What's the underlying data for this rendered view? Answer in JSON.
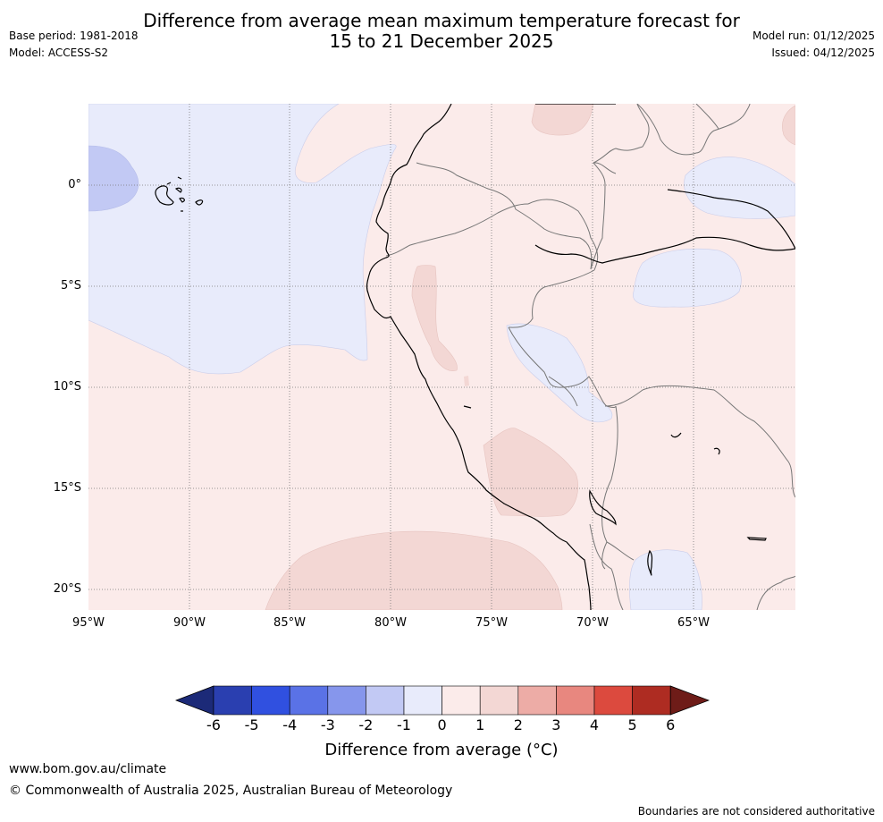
{
  "header": {
    "title_line1": "Difference from average mean maximum temperature forecast for",
    "title_line2": "15 to 21 December 2025",
    "base_period": "Base period: 1981-2018",
    "model": "Model: ACCESS-S2",
    "model_run": "Model run: 01/12/2025",
    "issued": "Issued: 04/12/2025"
  },
  "map": {
    "lat_labels": [
      "0°",
      "5°S",
      "10°S",
      "15°S",
      "20°S"
    ],
    "lon_labels": [
      "95°W",
      "90°W",
      "85°W",
      "80°W",
      "75°W",
      "70°W",
      "65°W"
    ]
  },
  "colorbar": {
    "ticks": [
      "-6",
      "-5",
      "-4",
      "-3",
      "-2",
      "-1",
      "0",
      "1",
      "2",
      "3",
      "4",
      "5",
      "6"
    ],
    "colors": [
      "#1c2a78",
      "#2a3fb0",
      "#3050e0",
      "#5a72e6",
      "#8696ec",
      "#c2c9f4",
      "#e8ebfb",
      "#fbebea",
      "#f3d7d4",
      "#edaca6",
      "#e8877f",
      "#dc4a3e",
      "#ae2c22",
      "#6e1c18"
    ],
    "label": "Difference from average (°C)"
  },
  "footer": {
    "url": "www.bom.gov.au/climate",
    "copyright": "© Commonwealth of Australia 2025, Australian Bureau of Meteorology",
    "disclaimer": "Boundaries are not considered authoritative"
  }
}
